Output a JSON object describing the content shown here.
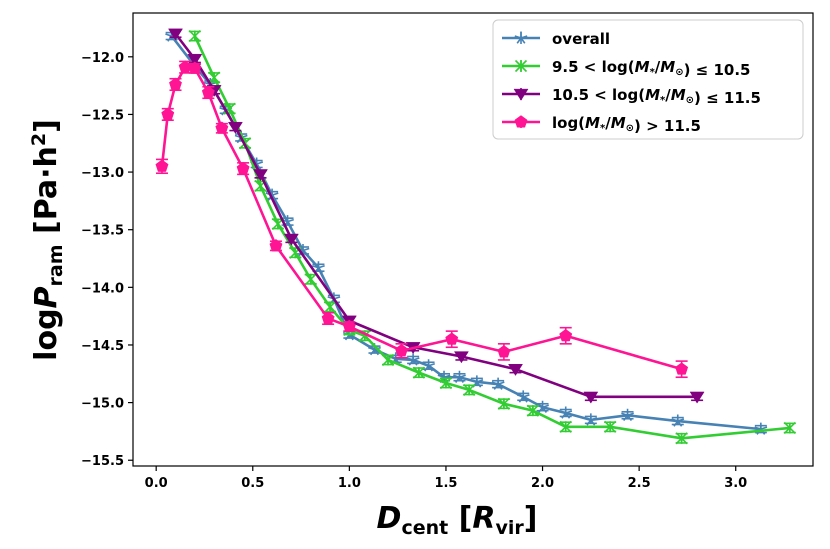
{
  "chart_data": {
    "type": "line",
    "xlabel": "D_cent [R_vir]",
    "ylabel": "logP_ram [Pa·h²]",
    "xlim": [
      -0.12,
      3.4
    ],
    "ylim": [
      -15.55,
      -11.62
    ],
    "xticks": [
      0.0,
      0.5,
      1.0,
      1.5,
      2.0,
      2.5,
      3.0
    ],
    "xtick_labels": [
      "0.0",
      "0.5",
      "1.0",
      "1.5",
      "2.0",
      "2.5",
      "3.0"
    ],
    "yticks": [
      -12.0,
      -12.5,
      -13.0,
      -13.5,
      -14.0,
      -14.5,
      -15.0,
      -15.5
    ],
    "ytick_labels": [
      "−12.0",
      "−12.5",
      "−13.0",
      "−13.5",
      "−14.0",
      "−14.5",
      "−15.0",
      "−15.5"
    ],
    "grid": false,
    "legend_position": "top-right",
    "series": [
      {
        "name": "overall",
        "color": "#4682b4",
        "marker": "star",
        "x": [
          0.08,
          0.2,
          0.28,
          0.36,
          0.44,
          0.52,
          0.6,
          0.68,
          0.76,
          0.84,
          0.92,
          1.0,
          1.13,
          1.24,
          1.33,
          1.41,
          1.49,
          1.57,
          1.66,
          1.77,
          1.9,
          2.0,
          2.12,
          2.25,
          2.44,
          2.7,
          3.13
        ],
        "y": [
          -11.82,
          -12.08,
          -12.24,
          -12.46,
          -12.7,
          -12.93,
          -13.2,
          -13.43,
          -13.68,
          -13.83,
          -14.1,
          -14.41,
          -14.54,
          -14.62,
          -14.63,
          -14.68,
          -14.78,
          -14.78,
          -14.82,
          -14.84,
          -14.95,
          -15.04,
          -15.09,
          -15.15,
          -15.11,
          -15.16,
          -15.23
        ],
        "yerr": 0.03
      },
      {
        "name": "9.5 < log(M*/M⊙) ≤ 10.5",
        "color": "#32cd32",
        "marker": "x",
        "x": [
          0.2,
          0.3,
          0.38,
          0.46,
          0.54,
          0.63,
          0.72,
          0.8,
          0.9,
          1.0,
          1.08,
          1.2,
          1.36,
          1.5,
          1.62,
          1.8,
          1.95,
          2.12,
          2.35,
          2.72,
          3.28
        ],
        "y": [
          -11.82,
          -12.18,
          -12.45,
          -12.75,
          -13.12,
          -13.45,
          -13.7,
          -13.93,
          -14.17,
          -14.37,
          -14.42,
          -14.63,
          -14.74,
          -14.83,
          -14.89,
          -15.01,
          -15.07,
          -15.21,
          -15.21,
          -15.31,
          -15.22
        ],
        "yerr": 0.04
      },
      {
        "name": "10.5 < log(M*/M⊙) ≤ 11.5",
        "color": "#800080",
        "marker": "triangle-down",
        "x": [
          0.1,
          0.2,
          0.3,
          0.41,
          0.54,
          0.7,
          1.0,
          1.33,
          1.58,
          1.86,
          2.25,
          2.8
        ],
        "y": [
          -11.8,
          -12.02,
          -12.29,
          -12.61,
          -13.02,
          -13.58,
          -14.29,
          -14.52,
          -14.6,
          -14.71,
          -14.95,
          -14.95
        ],
        "yerr": 0.03
      },
      {
        "name": "log(M*/M⊙) > 11.5",
        "color": "#ff1493",
        "marker": "pentagon",
        "x": [
          0.03,
          0.06,
          0.1,
          0.15,
          0.2,
          0.27,
          0.34,
          0.45,
          0.62,
          0.89,
          1.0,
          1.27,
          1.53,
          1.8,
          2.12,
          2.72
        ],
        "y": [
          -12.95,
          -12.5,
          -12.24,
          -12.09,
          -12.1,
          -12.31,
          -12.62,
          -12.97,
          -13.64,
          -14.27,
          -14.34,
          -14.55,
          -14.45,
          -14.56,
          -14.42,
          -14.71
        ],
        "yerr": [
          0.06,
          0.05,
          0.05,
          0.05,
          0.04,
          0.05,
          0.04,
          0.05,
          0.04,
          0.05,
          0.04,
          0.06,
          0.07,
          0.07,
          0.07,
          0.07
        ]
      }
    ]
  }
}
